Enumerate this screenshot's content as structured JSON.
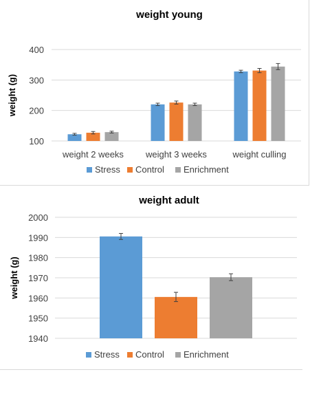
{
  "colors": {
    "stress": "#5b9bd5",
    "control": "#ed7d31",
    "enrichment": "#a5a5a5",
    "grid": "#d9d9d9",
    "axis_text": "#404040",
    "title_text": "#000000",
    "error_bar": "#404040"
  },
  "chart_data": [
    {
      "type": "bar",
      "title": "weight young",
      "xlabel": "",
      "ylabel": "weight (g)",
      "ylim": [
        100,
        400
      ],
      "yticks": [
        100,
        200,
        300,
        400
      ],
      "categories": [
        "weight 2 weeks",
        "weight 3 weeks",
        "weight culling"
      ],
      "grid": true,
      "legend": "bottom",
      "series": [
        {
          "name": "Stress",
          "color_key": "stress",
          "values": [
            122,
            220,
            328
          ],
          "errors": [
            3,
            4,
            4
          ]
        },
        {
          "name": "Control",
          "color_key": "control",
          "values": [
            127,
            226,
            331
          ],
          "errors": [
            4,
            5,
            7
          ]
        },
        {
          "name": "Enrichment",
          "color_key": "enrichment",
          "values": [
            129,
            220,
            344
          ],
          "errors": [
            3,
            4,
            10
          ]
        }
      ]
    },
    {
      "type": "bar",
      "title": "weight adult",
      "xlabel": "",
      "ylabel": "weight (g)",
      "ylim": [
        1940,
        2000
      ],
      "yticks": [
        1940,
        1950,
        1960,
        1970,
        1980,
        1990,
        2000
      ],
      "categories": [
        ""
      ],
      "grid": true,
      "legend": "bottom",
      "series": [
        {
          "name": "Stress",
          "color_key": "stress",
          "values": [
            1990.5
          ],
          "errors": [
            1.5
          ]
        },
        {
          "name": "Control",
          "color_key": "control",
          "values": [
            1960.5
          ],
          "errors": [
            2.3
          ]
        },
        {
          "name": "Enrichment",
          "color_key": "enrichment",
          "values": [
            1970.3
          ],
          "errors": [
            1.7
          ]
        }
      ]
    }
  ]
}
